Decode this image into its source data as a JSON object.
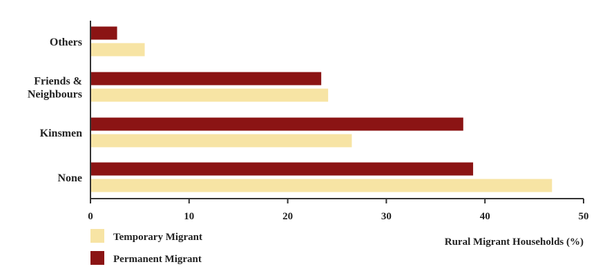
{
  "chart_data": {
    "type": "bar",
    "orientation": "horizontal",
    "categories": [
      "None",
      "Kinsmen",
      "Friends & Neighbours",
      "Others"
    ],
    "category_lines": [
      [
        "None"
      ],
      [
        "Kinsmen"
      ],
      [
        "Friends &",
        "Neighbours"
      ],
      [
        "Others"
      ]
    ],
    "series": [
      {
        "name": "Temporary Migrant",
        "color": "#f7e4a4",
        "values": [
          46.8,
          26.5,
          24.1,
          5.5
        ]
      },
      {
        "name": "Permanent Migrant",
        "color": "#8b1414",
        "values": [
          38.8,
          37.8,
          23.4,
          2.7
        ]
      }
    ],
    "xlabel": "Rural Migrant Households (%)",
    "xlim": [
      0,
      50
    ],
    "xticks": [
      0,
      10,
      20,
      30,
      40,
      50
    ],
    "grid": false,
    "legend_position": "bottom-left"
  }
}
